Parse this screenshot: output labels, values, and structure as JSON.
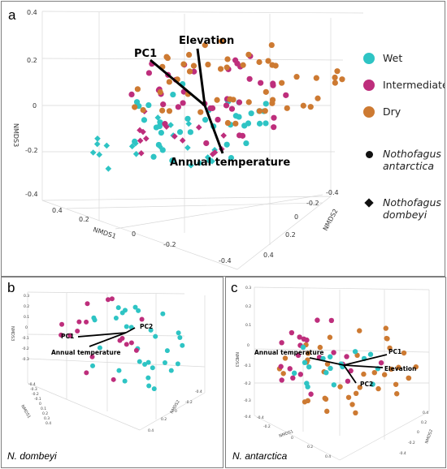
{
  "colors": {
    "wet": "#2ec4c4",
    "intermediate": "#be2e7c",
    "dry": "#cd7a32",
    "vector": "#000000",
    "grid": "#d8d8d8"
  },
  "panels": {
    "a": {
      "label": "a"
    },
    "b": {
      "label": "b",
      "caption": "N. dombeyi"
    },
    "c": {
      "label": "c",
      "caption": "N. antarctica"
    }
  },
  "legend": {
    "wet": "Wet",
    "intermediate": "Intermediate",
    "dry": "Dry",
    "nant_line1": "Nothofagus",
    "nant_line2": "antarctica",
    "ndom_line1": "Nothofagus",
    "ndom_line2": "dombeyi",
    "nant_icon": "circle-icon",
    "ndom_icon": "diamond-icon"
  },
  "chart_data": [
    {
      "panel": "a",
      "type": "scatter",
      "title": "",
      "axes": {
        "z_label": "NMDS3",
        "x_label": "NMDS1",
        "y_label": "NMDS2"
      },
      "z_ticks": [
        "0.4",
        "0.2",
        "0",
        "-0.2",
        "-0.4"
      ],
      "x_ticks": [
        "0.4",
        "0.2",
        "0",
        "-0.2",
        "-0.4"
      ],
      "y_ticks": [
        "-0.4",
        "-0.2",
        "0",
        "0.2",
        "0.4"
      ],
      "vectors": [
        "PC1",
        "Elevation",
        "Annual temperature"
      ],
      "series": [
        {
          "name": "Wet",
          "marker": "circle and diamond",
          "count_approx": 60
        },
        {
          "name": "Intermediate",
          "marker": "circle and diamond",
          "count_approx": 55
        },
        {
          "name": "Dry",
          "marker": "circle",
          "count_approx": 55
        }
      ]
    },
    {
      "panel": "b",
      "type": "scatter",
      "title": "N. dombeyi",
      "axes": {
        "z_label": "NMDS3",
        "x_label": "NMDS1",
        "y_label": "NMDS2"
      },
      "z_ticks": [
        "0.3",
        "0.2",
        "0.1",
        "0",
        "-0.1",
        "-0.2",
        "-0.3"
      ],
      "x_ticks": [
        "-0.4",
        "-0.3",
        "-0.2",
        "-0.1",
        "0",
        "0.1",
        "0.2",
        "0.3",
        "0.4"
      ],
      "y_ticks": [
        "-0.4",
        "-0.2",
        "0",
        "0.2",
        "0.4"
      ],
      "vectors": [
        "PC1",
        "PC2",
        "Annual temperature"
      ],
      "series": [
        {
          "name": "Wet",
          "marker": "circle",
          "count_approx": 32
        },
        {
          "name": "Intermediate",
          "marker": "circle",
          "count_approx": 18
        }
      ]
    },
    {
      "panel": "c",
      "type": "scatter",
      "title": "N. antarctica",
      "axes": {
        "z_label": "NMDS3",
        "x_label": "NMDS1",
        "y_label": "NMDS2"
      },
      "z_ticks": [
        "0.3",
        "0.2",
        "0.1",
        "0",
        "-0.1",
        "-0.2",
        "-0.3",
        "-0.4"
      ],
      "x_ticks": [
        "-0.4",
        "-0.2",
        "0",
        "0.2",
        "0.4"
      ],
      "y_ticks": [
        "-0.4",
        "-0.2",
        "0",
        "0.2",
        "0.4"
      ],
      "vectors": [
        "Annual temperature",
        "PC1",
        "Elevation",
        "PC2"
      ],
      "series": [
        {
          "name": "Wet",
          "marker": "circle",
          "count_approx": 18
        },
        {
          "name": "Intermediate",
          "marker": "circle",
          "count_approx": 22
        },
        {
          "name": "Dry",
          "marker": "circle",
          "count_approx": 40
        }
      ]
    }
  ]
}
